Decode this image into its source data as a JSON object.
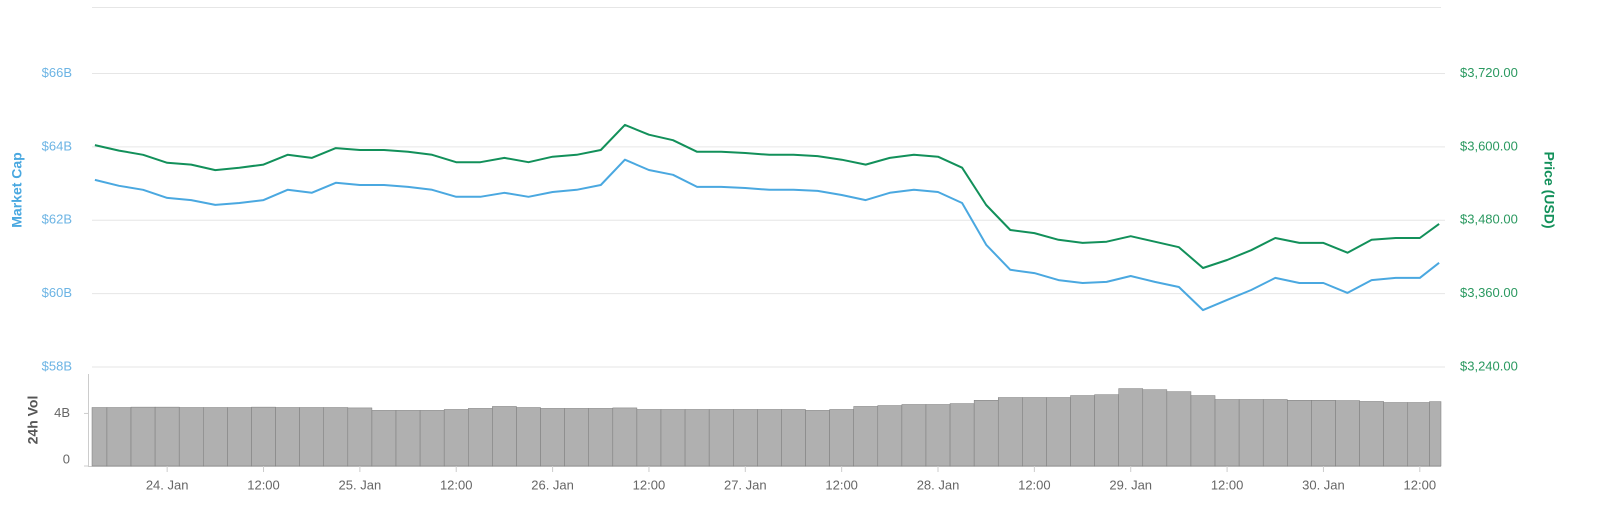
{
  "chart_data": [
    {
      "type": "line",
      "ylabel": "Market Cap",
      "y2label": "Price (USD)",
      "x": [
        23.625,
        23.75,
        23.875,
        24,
        24.125,
        24.25,
        24.375,
        24.5,
        24.625,
        24.75,
        24.875,
        25,
        25.125,
        25.25,
        25.375,
        25.5,
        25.625,
        25.75,
        25.875,
        26,
        26.125,
        26.25,
        26.375,
        26.5,
        26.625,
        26.75,
        26.875,
        27,
        27.125,
        27.25,
        27.375,
        27.5,
        27.625,
        27.75,
        27.875,
        28,
        28.125,
        28.25,
        28.375,
        28.5,
        28.625,
        28.75,
        28.875,
        29,
        29.125,
        29.25,
        29.375,
        29.5,
        29.625,
        29.75,
        29.875,
        30,
        30.125,
        30.25,
        30.375,
        30.5,
        30.6
      ],
      "xlim": [
        23.61,
        30.61
      ],
      "ylim": [
        58,
        67.8
      ],
      "yticks": [
        {
          "value": 58,
          "label": "$58B"
        },
        {
          "value": 60,
          "label": "$60B"
        },
        {
          "value": 62,
          "label": "$62B"
        },
        {
          "value": 64,
          "label": "$64B"
        },
        {
          "value": 66,
          "label": "$66B"
        }
      ],
      "y2lim": [
        3240,
        3828
      ],
      "y2ticks": [
        {
          "value": 3240,
          "label": "$3,240.00"
        },
        {
          "value": 3360,
          "label": "$3,360.00"
        },
        {
          "value": 3480,
          "label": "$3,480.00"
        },
        {
          "value": 3600,
          "label": "$3,600.00"
        },
        {
          "value": 3720,
          "label": "$3,720.00"
        }
      ],
      "grid": true,
      "series": [
        {
          "color": "#4aa8e0",
          "values": [
            63.1,
            62.94,
            62.83,
            62.61,
            62.55,
            62.42,
            62.47,
            62.55,
            62.83,
            62.75,
            63.02,
            62.96,
            62.96,
            62.91,
            62.83,
            62.64,
            62.64,
            62.75,
            62.64,
            62.77,
            62.83,
            62.96,
            63.65,
            63.37,
            63.24,
            62.91,
            62.91,
            62.88,
            62.83,
            62.83,
            62.8,
            62.69,
            62.55,
            62.75,
            62.83,
            62.77,
            62.47,
            61.33,
            60.65,
            60.56,
            60.37,
            60.29,
            60.32,
            60.48,
            60.32,
            60.18,
            59.55,
            59.83,
            60.1,
            60.43,
            60.29,
            60.29,
            60.02,
            60.37,
            60.43,
            60.43,
            60.84
          ]
        },
        {
          "color": "#12905a",
          "axis": "y2",
          "values": [
            3603,
            3594,
            3587,
            3574,
            3571,
            3562,
            3566,
            3571,
            3587,
            3582,
            3598,
            3595,
            3595,
            3592,
            3587,
            3575,
            3575,
            3582,
            3575,
            3584,
            3587,
            3595,
            3636,
            3620,
            3611,
            3592,
            3592,
            3590,
            3587,
            3587,
            3585,
            3579,
            3571,
            3582,
            3587,
            3584,
            3566,
            3505,
            3464,
            3459,
            3448,
            3443,
            3445,
            3454,
            3445,
            3436,
            3402,
            3415,
            3431,
            3451,
            3443,
            3443,
            3427,
            3448,
            3451,
            3451,
            3474
          ]
        }
      ]
    },
    {
      "type": "bar",
      "ylabel": "24h Vol",
      "x": [
        23.625,
        23.75,
        23.875,
        24,
        24.125,
        24.25,
        24.375,
        24.5,
        24.625,
        24.75,
        24.875,
        25,
        25.125,
        25.25,
        25.375,
        25.5,
        25.625,
        25.75,
        25.875,
        26,
        26.125,
        26.25,
        26.375,
        26.5,
        26.625,
        26.75,
        26.875,
        27,
        27.125,
        27.25,
        27.375,
        27.5,
        27.625,
        27.75,
        27.875,
        28,
        28.125,
        28.25,
        28.375,
        28.5,
        28.625,
        28.75,
        28.875,
        29,
        29.125,
        29.25,
        29.375,
        29.5,
        29.625,
        29.75,
        29.875,
        30,
        30.125,
        30.25,
        30.375,
        30.5,
        30.6
      ],
      "xlim": [
        23.61,
        30.61
      ],
      "xticks": [
        {
          "value": 24,
          "label": "24. Jan"
        },
        {
          "value": 24.5,
          "label": "12:00"
        },
        {
          "value": 25,
          "label": "25. Jan"
        },
        {
          "value": 25.5,
          "label": "12:00"
        },
        {
          "value": 26,
          "label": "26. Jan"
        },
        {
          "value": 26.5,
          "label": "12:00"
        },
        {
          "value": 27,
          "label": "27. Jan"
        },
        {
          "value": 27.5,
          "label": "12:00"
        },
        {
          "value": 28,
          "label": "28. Jan"
        },
        {
          "value": 28.5,
          "label": "12:00"
        },
        {
          "value": 29,
          "label": "29. Jan"
        },
        {
          "value": 29.5,
          "label": "12:00"
        },
        {
          "value": 30,
          "label": "30. Jan"
        },
        {
          "value": 30.5,
          "label": "12:00"
        }
      ],
      "ylim": [
        0,
        7
      ],
      "yticks": [
        0,
        {
          "value": 4,
          "label": "4B"
        }
      ],
      "color": "#b0b0b0",
      "values": [
        4.45,
        4.45,
        4.48,
        4.48,
        4.45,
        4.45,
        4.45,
        4.48,
        4.45,
        4.45,
        4.45,
        4.42,
        4.23,
        4.23,
        4.23,
        4.3,
        4.38,
        4.53,
        4.45,
        4.38,
        4.38,
        4.38,
        4.42,
        4.3,
        4.3,
        4.3,
        4.3,
        4.3,
        4.3,
        4.3,
        4.23,
        4.3,
        4.53,
        4.6,
        4.68,
        4.68,
        4.75,
        5.0,
        5.21,
        5.21,
        5.21,
        5.36,
        5.43,
        5.89,
        5.81,
        5.66,
        5.36,
        5.06,
        5.06,
        5.06,
        5.0,
        5.0,
        4.98,
        4.91,
        4.83,
        4.83,
        4.9
      ]
    }
  ]
}
